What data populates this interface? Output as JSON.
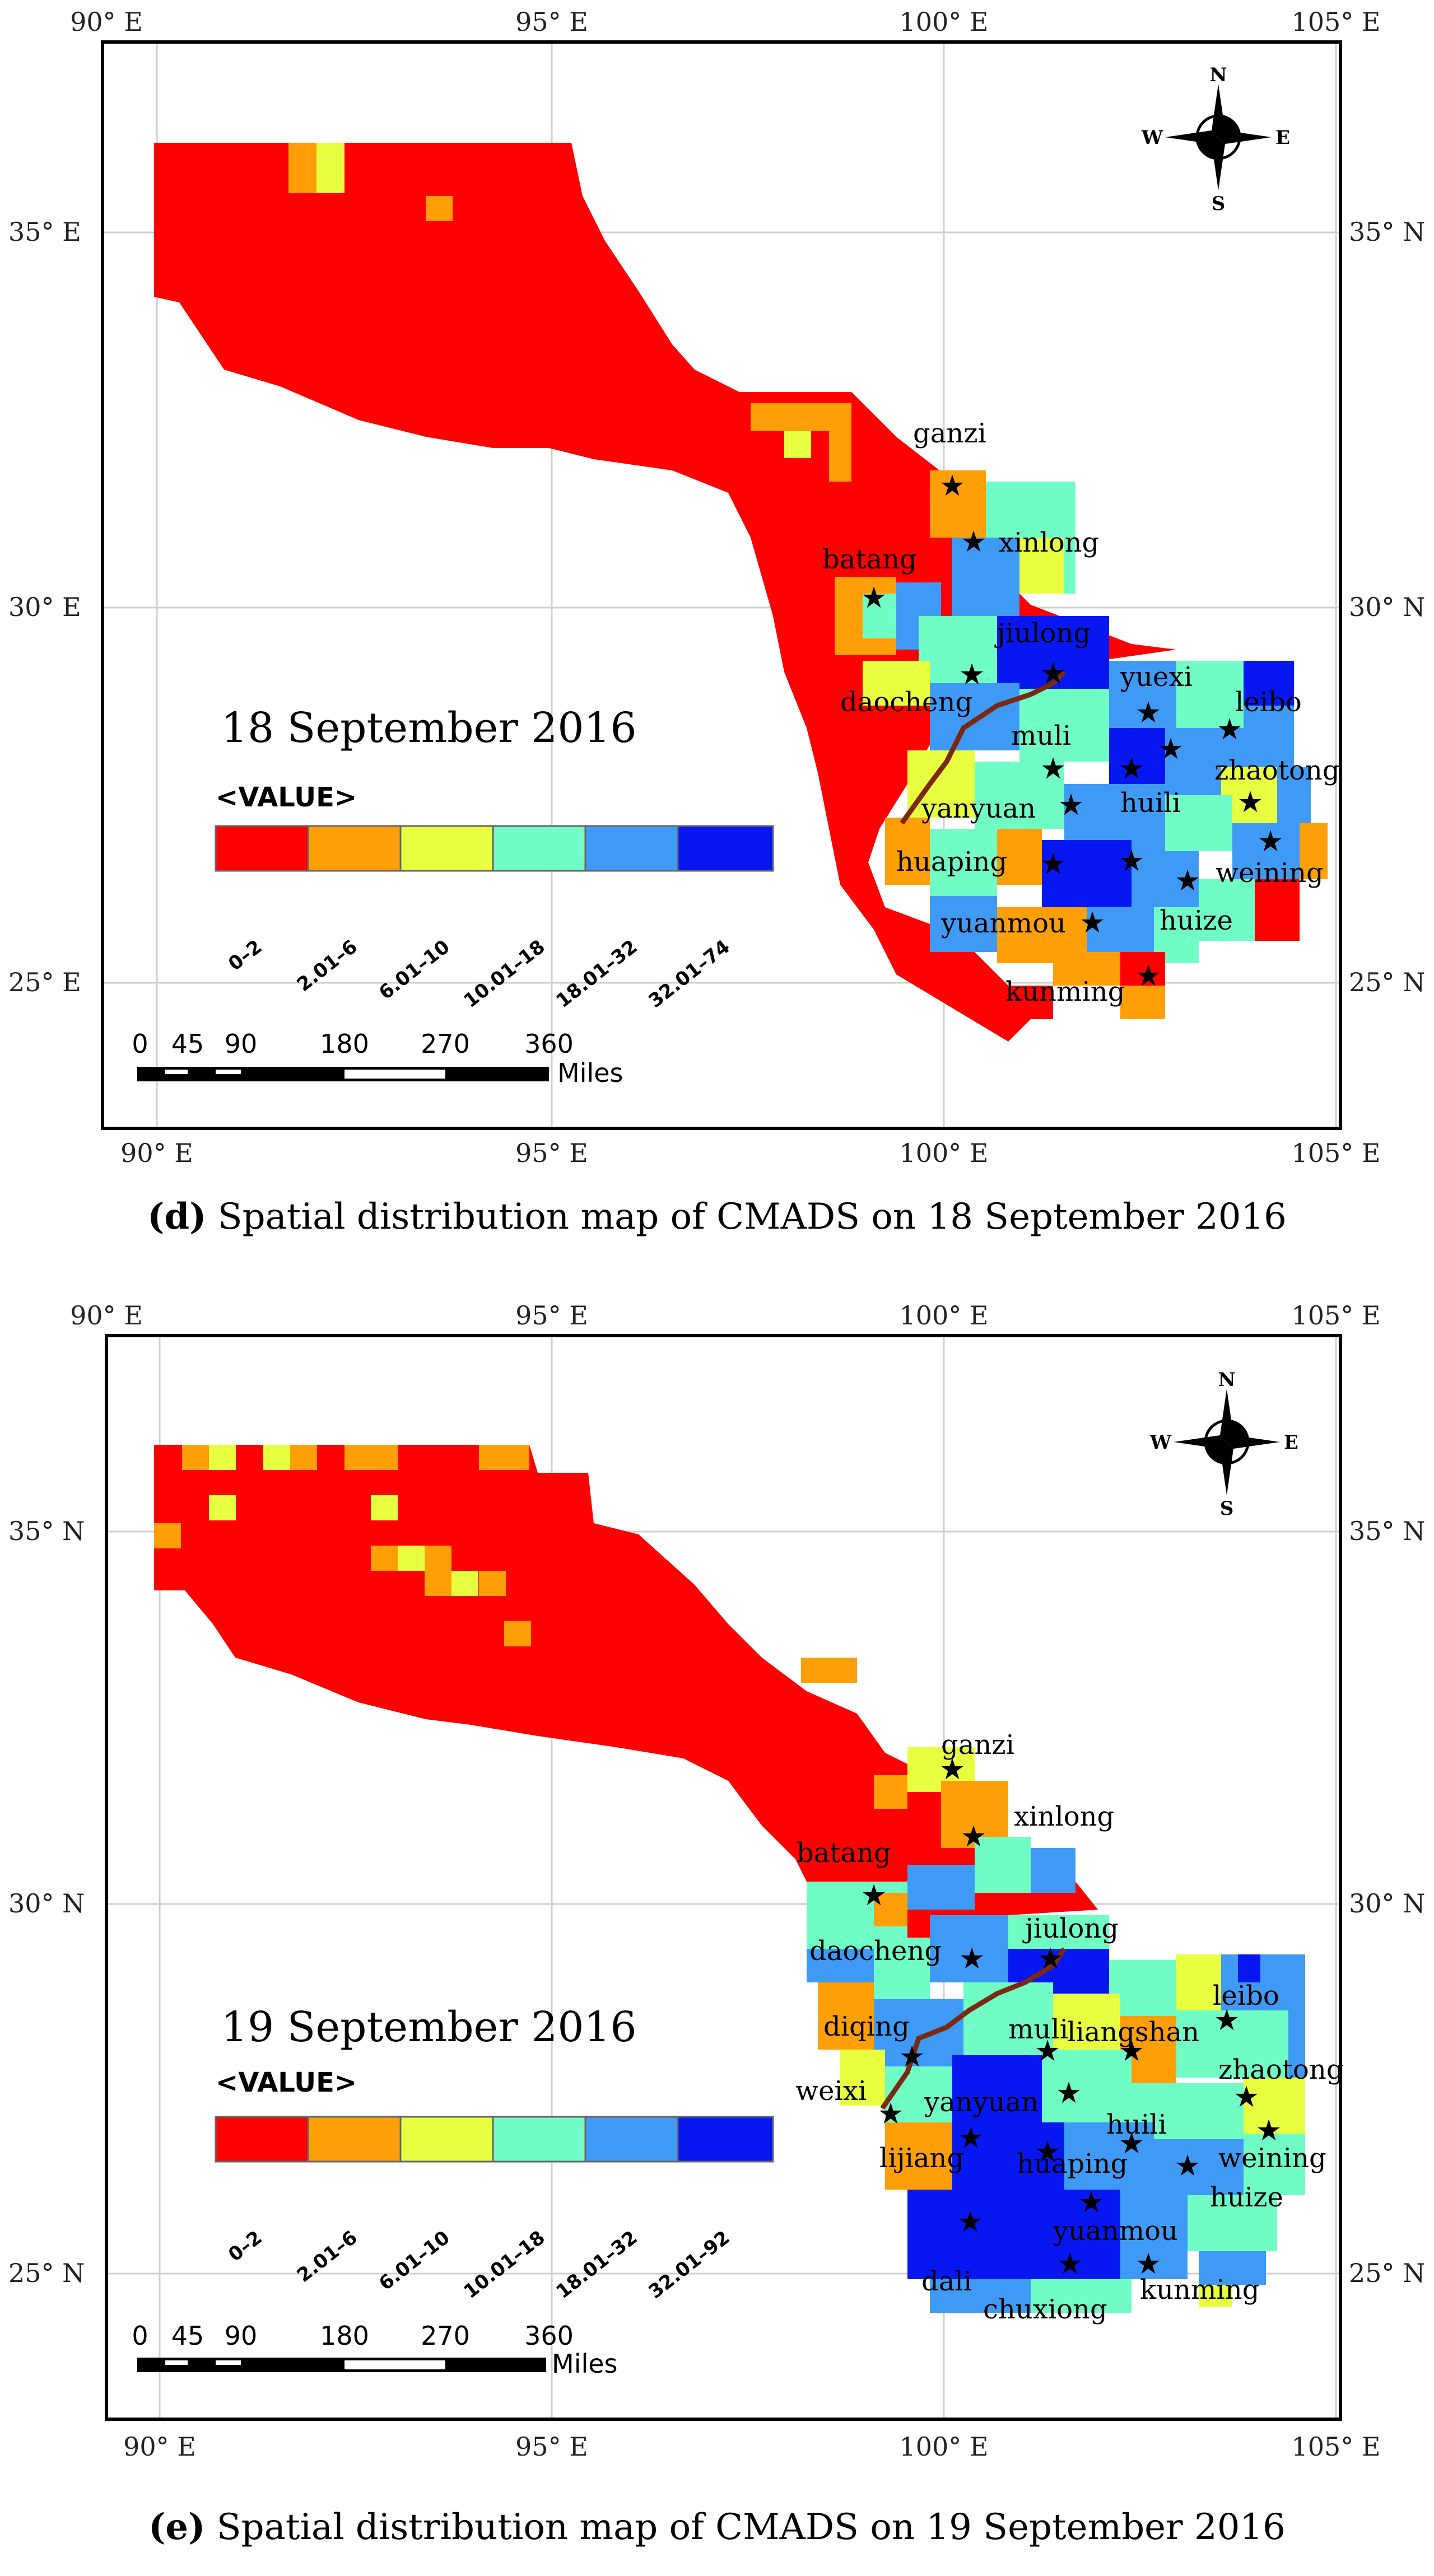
{
  "axis": {
    "lon_ticks": [
      "90° E",
      "95° E",
      "100° E",
      "105° E"
    ],
    "lat_ticks_left": [
      "35° E",
      "30° E",
      "25° E"
    ],
    "lat_ticks_left_e": [
      "35° N",
      "30° N",
      "25° N"
    ],
    "lat_ticks_right": [
      "35° N",
      "30° N",
      "25° N"
    ]
  },
  "legend": {
    "title": "<VALUE>",
    "colors": [
      "#ff0000",
      "#ff9f08",
      "#e8ff40",
      "#6ffdc5",
      "#3f9af6",
      "#0617f2"
    ]
  },
  "compass": {
    "n": "N",
    "s": "S",
    "e": "E",
    "w": "W"
  },
  "scale_bar": {
    "labels": [
      "0",
      "45",
      "90",
      "180",
      "270",
      "360"
    ],
    "unit": "Miles"
  },
  "panels": [
    {
      "id": "d",
      "date_label": "18 September 2016",
      "legend_classes": [
        "0–2",
        "2.01–6",
        "6.01–10",
        "10.01–18",
        "18.01–32",
        "32.01–74"
      ],
      "caption_letter": "(d)",
      "caption_text": " Spatial distribution map of CMADS on 18 September 2016",
      "stations": [
        "ganzi",
        "xinlong",
        "batang",
        "jiulong",
        "daocheng",
        "yuexi",
        "leibo",
        "muli",
        "zhaotong",
        "yanyuan",
        "huili",
        "huaping",
        "weining",
        "yuanmou",
        "huize",
        "kunming"
      ]
    },
    {
      "id": "e",
      "date_label": "19 September 2016",
      "legend_classes": [
        "0–2",
        "2.01–6",
        "6.01–10",
        "10.01–18",
        "18.01–32",
        "32.01–92"
      ],
      "caption_letter": "(e)",
      "caption_text": " Spatial distribution map of CMADS on 19 September 2016",
      "stations": [
        "ganzi",
        "xinlong",
        "batang",
        "jiulong",
        "daocheng",
        "leibo",
        "diqing",
        "muli",
        "liangshan",
        "zhaotong",
        "weixi",
        "yanyuan",
        "huili",
        "lijiang",
        "huaping",
        "weining",
        "huize",
        "yuanmou",
        "dali",
        "kunming",
        "chuxiong"
      ]
    }
  ]
}
